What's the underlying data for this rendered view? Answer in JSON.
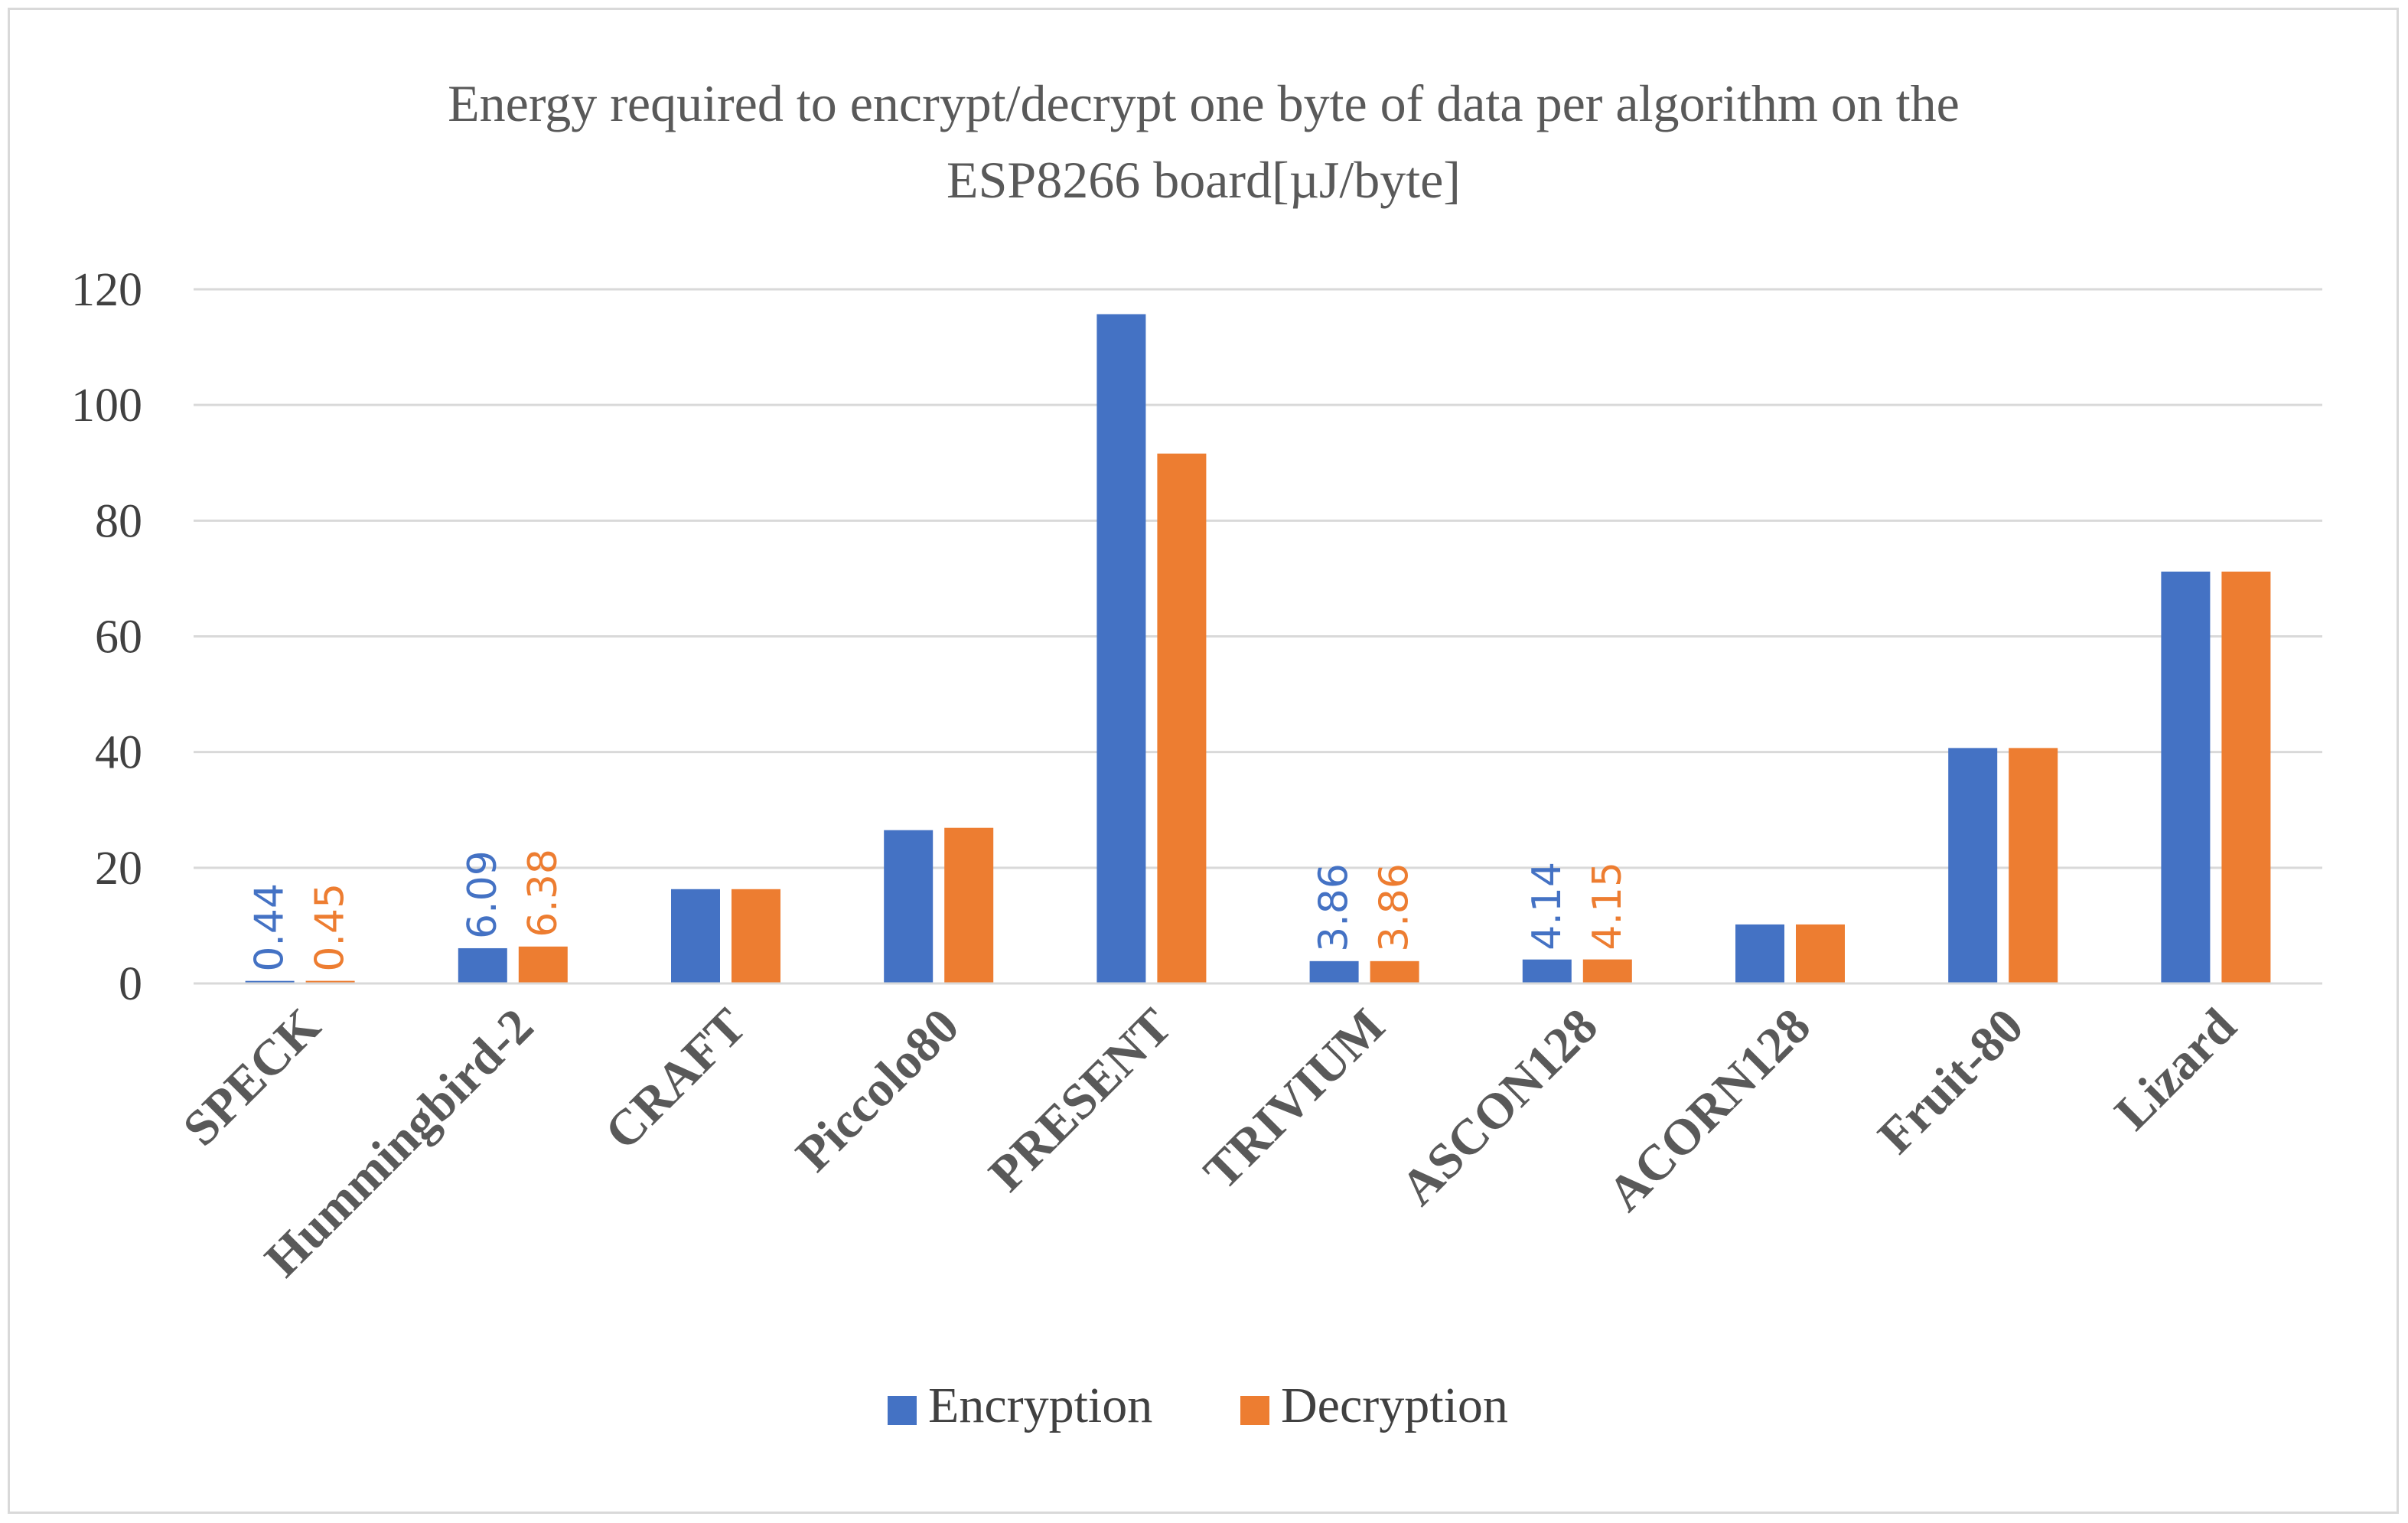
{
  "chart_data": {
    "type": "bar",
    "title_lines": [
      "Energy required to encrypt/decrypt one byte of data per algorithm on the",
      "ESP8266 board[µJ/byte]"
    ],
    "xlabel": "",
    "ylabel": "",
    "ylim": [
      0,
      120
    ],
    "yticks": [
      0,
      20,
      40,
      60,
      80,
      100,
      120
    ],
    "ytick_labels": [
      "0",
      "20",
      "40",
      "60",
      "80",
      "100",
      "120"
    ],
    "grid": true,
    "legend_position": "bottom",
    "categories": [
      "SPECK",
      "Hummingbird-2",
      "CRAFT",
      "Piccolo80",
      "PRESENT",
      "TRIVIUM",
      "ASCON128",
      "ACORN128",
      "Fruit-80",
      "Lizard"
    ],
    "series": [
      {
        "name": "Encryption",
        "color": "#4472c4",
        "values": [
          0.44,
          6.09,
          16.3,
          26.5,
          115.7,
          3.86,
          4.14,
          10.2,
          40.7,
          71.2
        ],
        "data_labels": [
          "0.44",
          "6.09",
          null,
          null,
          null,
          "3.86",
          "4.14",
          null,
          null,
          null
        ]
      },
      {
        "name": "Decryption",
        "color": "#ed7d31",
        "values": [
          0.45,
          6.38,
          16.3,
          26.9,
          91.6,
          3.86,
          4.15,
          10.2,
          40.7,
          71.2
        ],
        "data_labels": [
          "0.45",
          "6.38",
          null,
          null,
          null,
          "3.86",
          "4.15",
          null,
          null,
          null
        ]
      }
    ]
  }
}
